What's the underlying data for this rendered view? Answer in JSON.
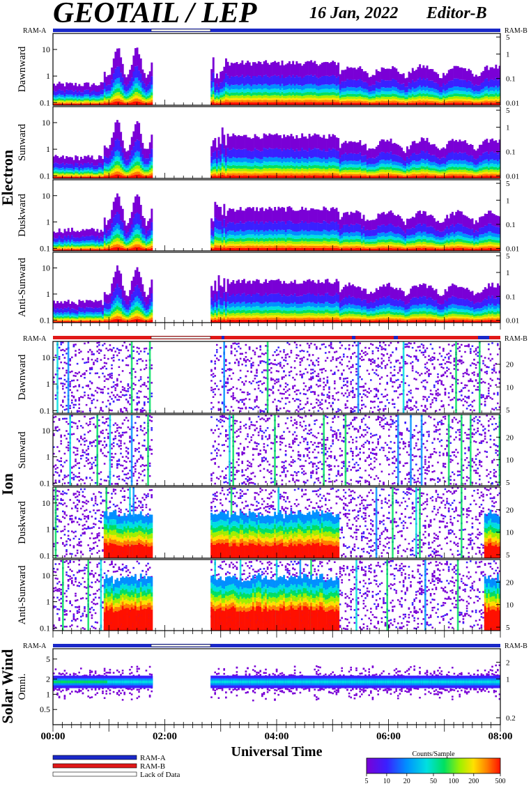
{
  "header": {
    "title": "GEOTAIL / LEP",
    "date": "16 Jan, 2022",
    "editor": "Editor-B"
  },
  "chart_data": {
    "type": "heatmap",
    "description_of_axes": "energy spectrograms vs universal time",
    "xlabel": "Universal Time",
    "x_ticks": [
      "00:00",
      "02:00",
      "04:00",
      "06:00",
      "08:00"
    ],
    "x_range_hours": [
      0,
      8
    ],
    "data_gap_hours": [
      1.75,
      2.8
    ],
    "groups": [
      {
        "name": "Electron",
        "panels": [
          {
            "label": "Dawnward",
            "left_ticks": [
              "0.1",
              "1",
              "10"
            ],
            "right_ticks": [
              "0.01",
              "0.1",
              "1",
              "5"
            ]
          },
          {
            "label": "Sunward",
            "left_ticks": [
              "0.1",
              "1",
              "10"
            ],
            "right_ticks": [
              "0.01",
              "0.1",
              "1",
              "5"
            ]
          },
          {
            "label": "Duskward",
            "left_ticks": [
              "0.1",
              "1",
              "10"
            ],
            "right_ticks": [
              "0.01",
              "0.1",
              "1",
              "5"
            ]
          },
          {
            "label": "Anti-Sunward",
            "left_ticks": [
              "0.1",
              "1",
              "10"
            ],
            "right_ticks": [
              "0.01",
              "0.1",
              "1",
              "5"
            ]
          }
        ]
      },
      {
        "name": "Ion",
        "panels": [
          {
            "label": "Dawnward",
            "left_ticks": [
              "0.1",
              "1",
              "10"
            ],
            "right_ticks": [
              "5",
              "10",
              "20"
            ]
          },
          {
            "label": "Sunward",
            "left_ticks": [
              "0.1",
              "1",
              "10"
            ],
            "right_ticks": [
              "5",
              "10",
              "20"
            ]
          },
          {
            "label": "Duskward",
            "left_ticks": [
              "0.1",
              "1",
              "10"
            ],
            "right_ticks": [
              "5",
              "10",
              "20"
            ]
          },
          {
            "label": "Anti-Sunward",
            "left_ticks": [
              "0.1",
              "1",
              "10"
            ],
            "right_ticks": [
              "5",
              "10",
              "20"
            ]
          }
        ]
      },
      {
        "name": "Solar Wind",
        "panels": [
          {
            "label": "Omni.",
            "left_ticks": [
              "0.5",
              "1",
              "2",
              "5"
            ],
            "right_ticks": [
              "0.2",
              "1",
              "2"
            ]
          }
        ]
      }
    ],
    "ram_labels": {
      "left": "RAM-A",
      "right": "RAM-B"
    },
    "legend": [
      {
        "label": "RAM-A",
        "color": "#1a28c8"
      },
      {
        "label": "RAM-B",
        "color": "#e01818"
      },
      {
        "label": "Lack of Data",
        "color": "#ffffff"
      }
    ],
    "colorbar": {
      "title": "Counts/Sample",
      "ticks": [
        "5",
        "10",
        "20",
        "50",
        "100",
        "200",
        "500"
      ],
      "colors": [
        "#7a00d6",
        "#3a20ff",
        "#0090ff",
        "#00e0e0",
        "#00e060",
        "#a0f000",
        "#ffe000",
        "#ff8000",
        "#ff1000"
      ]
    }
  }
}
